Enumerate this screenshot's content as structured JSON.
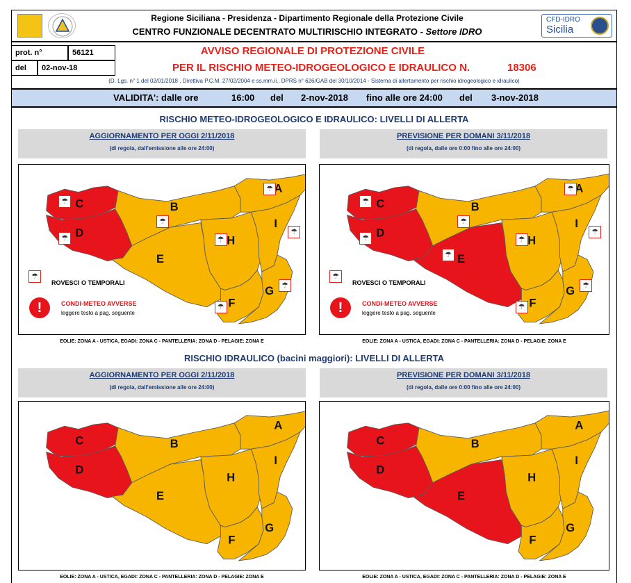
{
  "header": {
    "line1": "Regione Siciliana - Presidenza - Dipartimento Regionale della Protezione Civile",
    "line2": "CENTRO FUNZIONALE DECENTRATO MULTIRISCHIO INTEGRATO - ",
    "line2_italic": "Settore IDRO",
    "cfd_line1": "CFD-IDRO",
    "cfd_line2": "Sicilia"
  },
  "prot": {
    "label": "prot. n°",
    "value": "56121",
    "del_label": "del",
    "del_value": "02-nov-18"
  },
  "title": {
    "line1": "AVVISO REGIONALE DI PROTEZIONE CIVILE",
    "line2": "PER IL RISCHIO METEO-IDROGEOLOGICO E IDRAULICO N.",
    "number": "18306",
    "legal": "(D. Lgs. n° 1 del 02/01/2018 , Direttiva P.C.M. 27/02/2004 e ss.mm.ii., DPRS n° 626/GAB del 30/10/2014 - Sistema di allertamento per rischio idrogeologico e idraulico)"
  },
  "validity": {
    "label": "VALIDITA': dalle ore",
    "from_time": "16:00",
    "del1": "del",
    "from_date": "2-nov-2018",
    "to_label": "fino alle ore 24:00",
    "del2": "del",
    "to_date": "3-nov-2018"
  },
  "section1_title": "RISCHIO METEO-IDROGEOLOGICO E IDRAULICO: LIVELLI DI ALLERTA",
  "section2_title": "RISCHIO IDRAULICO (bacini maggiori): LIVELLI DI ALLERTA",
  "today": {
    "title": "AGGIORNAMENTO PER OGGI 2/11/2018",
    "sub": "(di regola, dall'emissione alle ore 24:00)"
  },
  "tomorrow": {
    "title": "PREVISIONE PER DOMANI 3/11/2018",
    "sub": "(di regola, dalle ore 0:00 fino alle ore 24:00)"
  },
  "legend": {
    "storms": "ROVESCI O TEMPORALI",
    "adverse": "CONDI-METEO AVVERSE",
    "adverse_sub": "leggere testo a pag. seguente"
  },
  "footnote": "EOLIE: ZONA A - USTICA, EGADI: ZONA C - PANTELLERIA: ZONA D - PELAGIE: ZONA E",
  "zones": [
    "A",
    "B",
    "C",
    "D",
    "E",
    "F",
    "G",
    "H",
    "I"
  ],
  "colors": {
    "orange": "#f7b500",
    "red": "#e8141c",
    "band": "#c6d9f1",
    "title_red": "#e2231a",
    "navy": "#1f3c74"
  },
  "maps": {
    "m1": {
      "red": [
        "C",
        "D"
      ]
    },
    "m2": {
      "red": [
        "C",
        "D",
        "E"
      ]
    },
    "m3": {
      "red": [
        "C",
        "D"
      ]
    },
    "m4": {
      "red": [
        "C",
        "D",
        "E"
      ]
    }
  }
}
